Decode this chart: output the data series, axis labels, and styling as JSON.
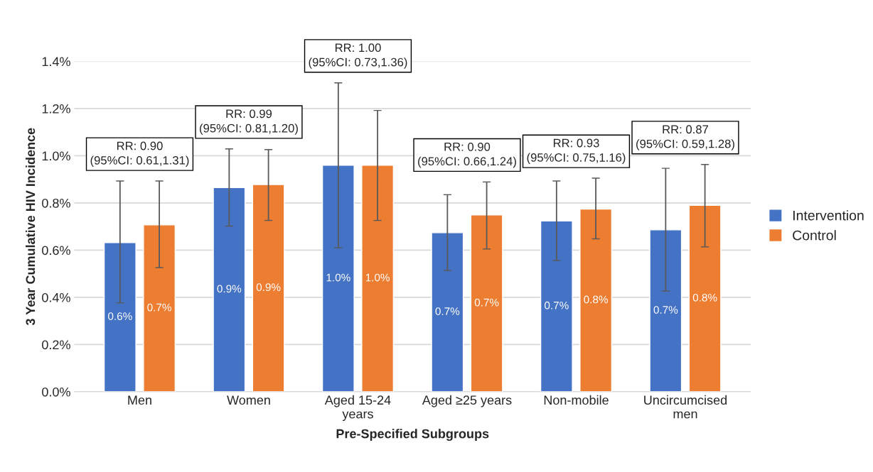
{
  "chart_data": {
    "type": "bar",
    "xlabel": "Pre-Specified Subgroups",
    "ylabel": "3 Year Cumulative HIV Incidence",
    "categories": [
      "Men",
      "Women",
      "Aged 15-24\nyears",
      "Aged ≥25 years",
      "Non-mobile",
      "Uncircumcised\nmen"
    ],
    "series": [
      {
        "name": "Intervention",
        "color": "#4472c4",
        "values": [
          0.632,
          0.865,
          0.96,
          0.674,
          0.724,
          0.686
        ],
        "errors": [
          [
            0.377,
            0.893
          ],
          [
            0.702,
            1.029
          ],
          [
            0.61,
            1.309
          ],
          [
            0.514,
            0.835
          ],
          [
            0.556,
            0.893
          ],
          [
            0.427,
            0.947
          ]
        ],
        "value_labels": [
          "0.6%",
          "0.9%",
          "1.0%",
          "0.7%",
          "0.7%",
          "0.7%"
        ]
      },
      {
        "name": "Control",
        "color": "#ed7d31",
        "values": [
          0.707,
          0.878,
          0.96,
          0.749,
          0.774,
          0.79
        ],
        "errors": [
          [
            0.526,
            0.893
          ],
          [
            0.726,
            1.026
          ],
          [
            0.726,
            1.192
          ],
          [
            0.605,
            0.889
          ],
          [
            0.648,
            0.905
          ],
          [
            0.614,
            0.963
          ]
        ],
        "value_labels": [
          "0.7%",
          "0.9%",
          "1.0%",
          "0.7%",
          "0.8%",
          "0.8%"
        ]
      }
    ],
    "ylim": [
      0,
      1.4
    ],
    "yticks": [
      {
        "value": 0,
        "label": "0.0%"
      },
      {
        "value": 0.2,
        "label": "0.2%"
      },
      {
        "value": 0.4,
        "label": "0.4%"
      },
      {
        "value": 0.6,
        "label": "0.6%"
      },
      {
        "value": 0.8,
        "label": "0.8%"
      },
      {
        "value": 1.0,
        "label": "1.0%"
      },
      {
        "value": 1.2,
        "label": "1.2%"
      },
      {
        "value": 1.4,
        "label": "1.4%"
      }
    ],
    "grid": "y",
    "legend": "right",
    "annotations": [
      "RR: 0.90\n(95%CI: 0.61,1.31)",
      "RR: 0.99\n(95%CI: 0.81,1.20)",
      "RR: 1.00\n(95%CI: 0.73,1.36)",
      "RR: 0.90\n(95%CI: 0.66,1.24)",
      "RR: 0.93\n(95%CI: 0.75,1.16)",
      "RR: 0.87\n(95%CI: 0.59,1.28)"
    ]
  }
}
